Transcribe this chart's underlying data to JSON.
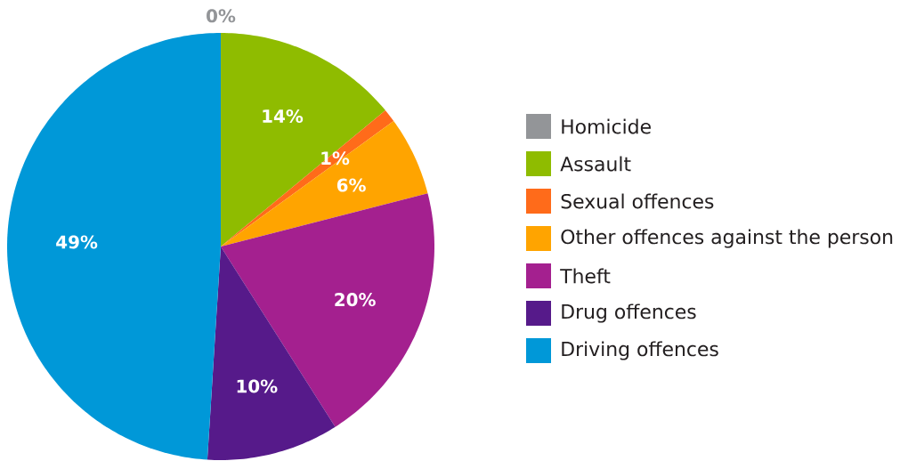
{
  "chart_data": {
    "type": "pie",
    "categories": [
      "Homicide",
      "Assault",
      "Sexual offences",
      "Other offences  against the person",
      "Theft",
      "Drug offences",
      "Driving offences"
    ],
    "values": [
      0,
      14,
      1,
      6,
      20,
      10,
      49
    ],
    "value_labels": [
      "0%",
      "14%",
      "1%",
      "6%",
      "20%",
      "10%",
      "49%"
    ],
    "colors": [
      "#939598",
      "#8fbc00",
      "#ff6b1a",
      "#ffa400",
      "#a4208f",
      "#561a8a",
      "#0098d8"
    ],
    "legend": "right"
  }
}
